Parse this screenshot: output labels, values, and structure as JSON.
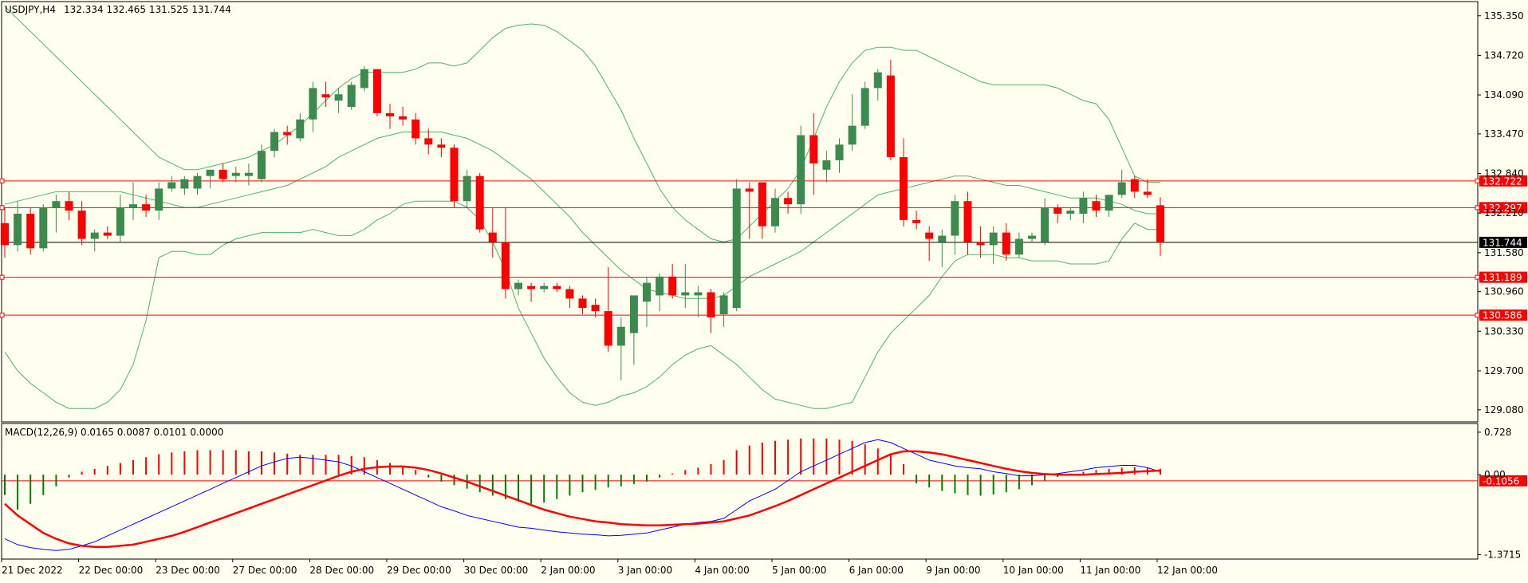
{
  "window": {
    "symbol_label": "USDJPY,H4",
    "ohlc_label": "132.334 132.465 131.525 131.744"
  },
  "indicator": {
    "label": "MACD(12,26,9) 0.0165 0.0087 0.0101 0.0000"
  },
  "colors": {
    "background": "#fffff0",
    "axis": "#000000",
    "bull_candle": "#3c8a4e",
    "bear_candle": "#ff0000",
    "bands": "#4cb36a",
    "level_line": "#ff0000",
    "current_line": "#000000",
    "macd_line": "#0000ff",
    "signal_line": "#ff0000",
    "hist_pos": "#ff0000",
    "hist_neg": "#008000"
  },
  "chart_data": [
    {
      "type": "candlestick",
      "title": "USDJPY,H4",
      "ylim": [
        128.9,
        135.55
      ],
      "y_ticks": [
        "135.350",
        "134.720",
        "134.090",
        "133.470",
        "132.840",
        "132.210",
        "131.580",
        "130.960",
        "130.330",
        "129.700",
        "129.080"
      ],
      "x_ticks": [
        "21 Dec 2022",
        "22 Dec 00:00",
        "23 Dec 00:00",
        "27 Dec 00:00",
        "28 Dec 00:00",
        "29 Dec 00:00",
        "30 Dec 00:00",
        "2 Jan 00:00",
        "3 Jan 00:00",
        "4 Jan 00:00",
        "5 Jan 00:00",
        "6 Jan 00:00",
        "9 Jan 00:00",
        "10 Jan 00:00",
        "11 Jan 00:00",
        "12 Jan 00:00"
      ],
      "price_levels": [
        "132.722",
        "132.297",
        "131.189",
        "130.586"
      ],
      "current_price": "131.744",
      "candles": [
        [
          132.05,
          132.3,
          131.5,
          131.7
        ],
        [
          131.7,
          132.4,
          131.6,
          132.2
        ],
        [
          132.2,
          132.3,
          131.55,
          131.65
        ],
        [
          131.65,
          132.35,
          131.6,
          132.3
        ],
        [
          132.3,
          132.5,
          131.9,
          132.4
        ],
        [
          132.4,
          132.55,
          132.1,
          132.25
        ],
        [
          132.25,
          132.4,
          131.7,
          131.8
        ],
        [
          131.8,
          131.95,
          131.6,
          131.9
        ],
        [
          131.9,
          132.0,
          131.8,
          131.85
        ],
        [
          131.85,
          132.5,
          131.75,
          132.3
        ],
        [
          132.3,
          132.7,
          132.1,
          132.35
        ],
        [
          132.35,
          132.5,
          132.15,
          132.25
        ],
        [
          132.25,
          132.7,
          132.1,
          132.6
        ],
        [
          132.6,
          132.8,
          132.55,
          132.7
        ],
        [
          132.6,
          132.8,
          132.5,
          132.75
        ],
        [
          132.6,
          132.85,
          132.5,
          132.8
        ],
        [
          132.8,
          132.9,
          132.6,
          132.9
        ],
        [
          132.9,
          133.0,
          132.7,
          132.75
        ],
        [
          132.8,
          132.95,
          132.7,
          132.85
        ],
        [
          132.8,
          133.0,
          132.65,
          132.85
        ],
        [
          132.75,
          133.3,
          132.7,
          133.2
        ],
        [
          133.2,
          133.55,
          133.1,
          133.5
        ],
        [
          133.5,
          133.6,
          133.3,
          133.45
        ],
        [
          133.4,
          133.8,
          133.35,
          133.7
        ],
        [
          133.7,
          134.3,
          133.5,
          134.2
        ],
        [
          134.1,
          134.3,
          133.9,
          134.05
        ],
        [
          134.0,
          134.2,
          133.8,
          134.1
        ],
        [
          133.9,
          134.3,
          133.85,
          134.25
        ],
        [
          134.2,
          134.55,
          134.15,
          134.5
        ],
        [
          134.5,
          134.5,
          133.75,
          133.8
        ],
        [
          133.8,
          133.95,
          133.55,
          133.75
        ],
        [
          133.75,
          133.9,
          133.6,
          133.7
        ],
        [
          133.7,
          133.8,
          133.3,
          133.4
        ],
        [
          133.4,
          133.55,
          133.15,
          133.3
        ],
        [
          133.3,
          133.4,
          133.1,
          133.25
        ],
        [
          133.25,
          133.3,
          132.3,
          132.4
        ],
        [
          132.4,
          132.9,
          132.3,
          132.8
        ],
        [
          132.8,
          132.85,
          131.9,
          131.95
        ],
        [
          131.9,
          132.3,
          131.5,
          131.75
        ],
        [
          131.75,
          132.3,
          130.85,
          131.0
        ],
        [
          131.0,
          131.15,
          130.9,
          131.1
        ],
        [
          131.05,
          131.1,
          130.8,
          131.0
        ],
        [
          131.0,
          131.1,
          130.95,
          131.05
        ],
        [
          131.05,
          131.1,
          130.95,
          131.0
        ],
        [
          131.0,
          131.05,
          130.7,
          130.85
        ],
        [
          130.85,
          130.9,
          130.6,
          130.7
        ],
        [
          130.75,
          130.85,
          130.55,
          130.65
        ],
        [
          130.65,
          131.35,
          130.0,
          130.1
        ],
        [
          130.1,
          130.55,
          129.55,
          130.4
        ],
        [
          130.3,
          130.9,
          129.8,
          130.9
        ],
        [
          130.8,
          131.2,
          130.4,
          131.1
        ],
        [
          130.9,
          131.25,
          130.65,
          131.2
        ],
        [
          131.2,
          131.4,
          130.85,
          130.9
        ],
        [
          130.9,
          131.4,
          130.7,
          130.95
        ],
        [
          130.9,
          131.05,
          130.55,
          130.95
        ],
        [
          130.95,
          131.0,
          130.3,
          130.55
        ],
        [
          130.6,
          130.95,
          130.4,
          130.9
        ],
        [
          130.7,
          132.75,
          130.65,
          132.6
        ],
        [
          132.6,
          132.7,
          131.8,
          132.55
        ],
        [
          132.7,
          132.7,
          131.8,
          132.0
        ],
        [
          132.0,
          132.6,
          131.9,
          132.45
        ],
        [
          132.45,
          132.55,
          132.2,
          132.35
        ],
        [
          132.35,
          133.6,
          132.2,
          133.45
        ],
        [
          133.45,
          133.8,
          132.5,
          133.0
        ],
        [
          132.9,
          133.2,
          132.7,
          133.05
        ],
        [
          133.05,
          133.4,
          132.85,
          133.3
        ],
        [
          133.3,
          134.1,
          133.2,
          133.6
        ],
        [
          133.6,
          134.3,
          133.55,
          134.2
        ],
        [
          134.2,
          134.5,
          134.0,
          134.45
        ],
        [
          134.4,
          134.65,
          133.05,
          133.1
        ],
        [
          133.1,
          133.4,
          132.0,
          132.1
        ],
        [
          132.1,
          132.25,
          131.95,
          132.05
        ],
        [
          131.9,
          132.0,
          131.45,
          131.8
        ],
        [
          131.75,
          131.95,
          131.35,
          131.85
        ],
        [
          131.85,
          132.5,
          131.55,
          132.4
        ],
        [
          132.4,
          132.55,
          131.55,
          131.75
        ],
        [
          131.75,
          132.0,
          131.5,
          131.7
        ],
        [
          131.7,
          132.0,
          131.4,
          131.9
        ],
        [
          131.9,
          132.05,
          131.45,
          131.55
        ],
        [
          131.55,
          131.9,
          131.5,
          131.8
        ],
        [
          131.8,
          131.9,
          131.75,
          131.85
        ],
        [
          131.75,
          132.45,
          131.7,
          132.3
        ],
        [
          132.3,
          132.35,
          132.05,
          132.2
        ],
        [
          132.2,
          132.3,
          132.1,
          132.25
        ],
        [
          132.2,
          132.55,
          132.05,
          132.45
        ],
        [
          132.4,
          132.5,
          132.15,
          132.25
        ],
        [
          132.25,
          132.5,
          132.15,
          132.5
        ],
        [
          132.5,
          132.9,
          132.45,
          132.7
        ],
        [
          132.75,
          132.8,
          132.45,
          132.55
        ],
        [
          132.55,
          132.75,
          132.45,
          132.5
        ],
        [
          132.334,
          132.465,
          131.525,
          131.744
        ]
      ],
      "band_upper": [
        135.5,
        135.3,
        135.1,
        134.9,
        134.7,
        134.5,
        134.3,
        134.1,
        133.9,
        133.7,
        133.5,
        133.3,
        133.1,
        133.0,
        132.9,
        132.9,
        132.95,
        133.0,
        133.05,
        133.1,
        133.2,
        133.3,
        133.45,
        133.6,
        133.8,
        134.0,
        134.2,
        134.35,
        134.45,
        134.45,
        134.45,
        134.45,
        134.5,
        134.6,
        134.6,
        134.55,
        134.6,
        134.8,
        135.0,
        135.15,
        135.2,
        135.22,
        135.2,
        135.1,
        134.95,
        134.8,
        134.55,
        134.2,
        133.85,
        133.4,
        133.0,
        132.6,
        132.3,
        132.1,
        131.95,
        131.8,
        131.75,
        131.8,
        132.0,
        132.2,
        132.4,
        132.6,
        132.9,
        133.4,
        133.9,
        134.3,
        134.6,
        134.8,
        134.85,
        134.85,
        134.8,
        134.8,
        134.7,
        134.6,
        134.5,
        134.4,
        134.3,
        134.25,
        134.25,
        134.25,
        134.25,
        134.25,
        134.2,
        134.1,
        134.0,
        133.95,
        133.7,
        133.25,
        132.8,
        132.7,
        132.7
      ],
      "band_middle": [
        132.35,
        132.4,
        132.45,
        132.5,
        132.55,
        132.55,
        132.55,
        132.55,
        132.55,
        132.55,
        132.5,
        132.45,
        132.4,
        132.35,
        132.3,
        132.3,
        132.35,
        132.4,
        132.45,
        132.5,
        132.55,
        132.6,
        132.65,
        132.75,
        132.85,
        132.95,
        133.1,
        133.2,
        133.3,
        133.4,
        133.45,
        133.5,
        133.5,
        133.5,
        133.5,
        133.45,
        133.4,
        133.3,
        133.2,
        133.05,
        132.9,
        132.75,
        132.55,
        132.35,
        132.15,
        131.9,
        131.7,
        131.5,
        131.3,
        131.15,
        131.0,
        130.95,
        130.9,
        130.85,
        130.85,
        130.85,
        130.9,
        131.05,
        131.2,
        131.3,
        131.4,
        131.5,
        131.6,
        131.75,
        131.9,
        132.05,
        132.2,
        132.35,
        132.5,
        132.55,
        132.6,
        132.65,
        132.7,
        132.75,
        132.8,
        132.8,
        132.75,
        132.7,
        132.65,
        132.65,
        132.6,
        132.55,
        132.5,
        132.45,
        132.45,
        132.45,
        132.4,
        132.35,
        132.25,
        132.2,
        132.2
      ],
      "band_lower": [
        130.0,
        129.7,
        129.5,
        129.35,
        129.2,
        129.1,
        129.1,
        129.1,
        129.2,
        129.4,
        129.8,
        130.5,
        131.5,
        131.6,
        131.6,
        131.55,
        131.55,
        131.7,
        131.8,
        131.85,
        131.9,
        131.9,
        131.9,
        131.9,
        131.95,
        131.9,
        131.85,
        131.85,
        131.95,
        132.1,
        132.2,
        132.35,
        132.4,
        132.4,
        132.4,
        132.4,
        132.3,
        132.1,
        131.75,
        131.3,
        130.7,
        130.3,
        129.9,
        129.6,
        129.35,
        129.2,
        129.15,
        129.2,
        129.3,
        129.35,
        129.45,
        129.6,
        129.8,
        129.95,
        130.05,
        130.1,
        129.95,
        129.8,
        129.6,
        129.4,
        129.25,
        129.2,
        129.15,
        129.1,
        129.1,
        129.15,
        129.2,
        129.6,
        130.0,
        130.3,
        130.5,
        130.7,
        130.9,
        131.2,
        131.45,
        131.55,
        131.55,
        131.55,
        131.5,
        131.5,
        131.45,
        131.45,
        131.45,
        131.4,
        131.4,
        131.4,
        131.45,
        131.8,
        132.05,
        131.95,
        131.95
      ]
    },
    {
      "type": "line",
      "title": "MACD(12,26,9) 0.0165 0.0087 0.0101 0.0000",
      "ylim": [
        -1.42,
        0.85
      ],
      "y_ticks": [
        "0.728",
        "0.00",
        "-1.3715"
      ],
      "level_label": "-0.1056",
      "histogram": [
        -0.35,
        -0.6,
        -0.5,
        -0.35,
        -0.2,
        -0.05,
        0.05,
        0.1,
        0.15,
        0.2,
        0.25,
        0.3,
        0.35,
        0.38,
        0.4,
        0.42,
        0.42,
        0.42,
        0.42,
        0.4,
        0.4,
        0.38,
        0.36,
        0.34,
        0.34,
        0.34,
        0.34,
        0.32,
        0.3,
        0.25,
        0.2,
        0.15,
        0.08,
        -0.05,
        -0.12,
        -0.18,
        -0.24,
        -0.3,
        -0.36,
        -0.42,
        -0.46,
        -0.5,
        -0.48,
        -0.42,
        -0.36,
        -0.3,
        -0.26,
        -0.22,
        -0.2,
        -0.16,
        -0.12,
        -0.05,
        0.02,
        0.08,
        0.12,
        0.18,
        0.25,
        0.42,
        0.5,
        0.55,
        0.58,
        0.6,
        0.62,
        0.62,
        0.62,
        0.6,
        0.58,
        0.52,
        0.45,
        0.35,
        0.18,
        -0.15,
        -0.22,
        -0.28,
        -0.32,
        -0.35,
        -0.36,
        -0.34,
        -0.3,
        -0.25,
        -0.18,
        -0.1,
        -0.04,
        0.02,
        0.05,
        0.08,
        0.1,
        0.12,
        0.13,
        0.12,
        0.1
      ],
      "series": [
        {
          "values": [
            -1.1,
            -1.2,
            -1.25,
            -1.28,
            -1.3,
            -1.28,
            -1.22,
            -1.15,
            -1.05,
            -0.95,
            -0.85,
            -0.75,
            -0.65,
            -0.55,
            -0.45,
            -0.35,
            -0.25,
            -0.15,
            -0.05,
            0.05,
            0.15,
            0.22,
            0.28,
            0.3,
            0.28,
            0.25,
            0.22,
            0.15,
            0.05,
            -0.05,
            -0.15,
            -0.25,
            -0.35,
            -0.45,
            -0.55,
            -0.62,
            -0.7,
            -0.75,
            -0.8,
            -0.85,
            -0.9,
            -0.92,
            -0.95,
            -0.98,
            -1.0,
            -1.02,
            -1.03,
            -1.05,
            -1.04,
            -1.02,
            -1.0,
            -0.95,
            -0.9,
            -0.85,
            -0.82,
            -0.8,
            -0.75,
            -0.6,
            -0.45,
            -0.35,
            -0.25,
            -0.1,
            0.05,
            0.15,
            0.25,
            0.35,
            0.45,
            0.55,
            0.6,
            0.55,
            0.45,
            0.35,
            0.25,
            0.2,
            0.15,
            0.12,
            0.1,
            0.05,
            0.02,
            -0.02,
            -0.02,
            0.0,
            0.02,
            0.05,
            0.08,
            0.12,
            0.14,
            0.16,
            0.16,
            0.12,
            0.05
          ]
        },
        {
          "values": [
            -0.5,
            -0.7,
            -0.85,
            -1.0,
            -1.1,
            -1.18,
            -1.22,
            -1.24,
            -1.24,
            -1.22,
            -1.2,
            -1.15,
            -1.1,
            -1.05,
            -0.98,
            -0.9,
            -0.82,
            -0.74,
            -0.66,
            -0.58,
            -0.5,
            -0.42,
            -0.34,
            -0.26,
            -0.18,
            -0.1,
            -0.02,
            0.05,
            0.1,
            0.13,
            0.14,
            0.14,
            0.12,
            0.08,
            0.02,
            -0.05,
            -0.12,
            -0.2,
            -0.28,
            -0.36,
            -0.44,
            -0.52,
            -0.6,
            -0.66,
            -0.72,
            -0.76,
            -0.8,
            -0.82,
            -0.85,
            -0.86,
            -0.87,
            -0.87,
            -0.86,
            -0.85,
            -0.84,
            -0.82,
            -0.8,
            -0.75,
            -0.7,
            -0.62,
            -0.54,
            -0.45,
            -0.35,
            -0.25,
            -0.15,
            -0.05,
            0.05,
            0.15,
            0.25,
            0.35,
            0.4,
            0.4,
            0.38,
            0.35,
            0.3,
            0.25,
            0.2,
            0.15,
            0.1,
            0.06,
            0.03,
            0.01,
            0.0,
            0.0,
            0.0,
            0.01,
            0.02,
            0.03,
            0.05,
            0.06,
            0.07
          ]
        }
      ]
    }
  ]
}
